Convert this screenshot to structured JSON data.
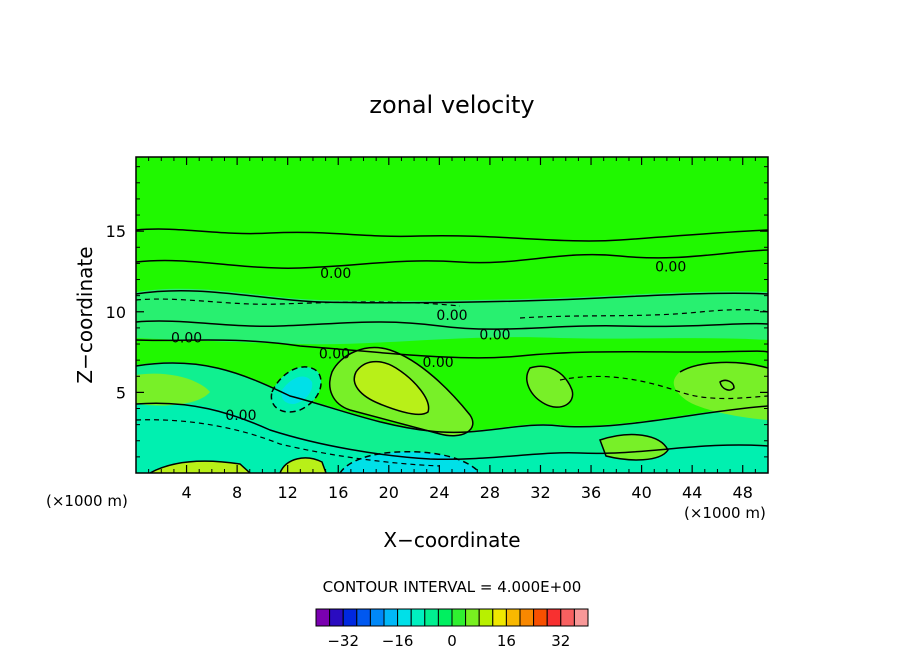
{
  "chart_data": {
    "type": "contour",
    "title": "zonal velocity",
    "xlabel": "X−coordinate",
    "ylabel": "Z−coordinate",
    "x_unit_left": "(×1000 m)",
    "x_unit_right": "(×1000 m)",
    "xlim": [
      0,
      50
    ],
    "ylim": [
      0,
      19.6
    ],
    "x_ticks": [
      4,
      8,
      12,
      16,
      20,
      24,
      28,
      32,
      36,
      40,
      44,
      48
    ],
    "x_tick_labels": [
      "4",
      "8",
      "12",
      "16",
      "20",
      "24",
      "28",
      "32",
      "36",
      "40",
      "44",
      "48"
    ],
    "y_ticks": [
      5,
      10,
      15
    ],
    "y_tick_labels": [
      "5",
      "10",
      "15"
    ],
    "contour_labels": [
      {
        "text": "0.00",
        "x": 15.8,
        "y": 12.4
      },
      {
        "text": "0.00",
        "x": 42.3,
        "y": 12.8
      },
      {
        "text": "0.00",
        "x": 25.0,
        "y": 9.8
      },
      {
        "text": "0.00",
        "x": 28.4,
        "y": 8.6
      },
      {
        "text": "0.00",
        "x": 23.9,
        "y": 6.9
      },
      {
        "text": "0.00",
        "x": 4.0,
        "y": 8.4
      },
      {
        "text": "0.00",
        "x": 15.7,
        "y": 7.4
      },
      {
        "text": "0.00",
        "x": 8.3,
        "y": 3.6
      }
    ],
    "contour_interval_text": "CONTOUR INTERVAL = 4.000E+00",
    "colorbar": {
      "colors": [
        "#7a00b0",
        "#2a0cc0",
        "#0028e0",
        "#0058f0",
        "#0088f8",
        "#00b8f8",
        "#00e0e8",
        "#00f0c0",
        "#00f090",
        "#00f060",
        "#30f030",
        "#78f020",
        "#b8f000",
        "#f0e800",
        "#f8b800",
        "#f88800",
        "#f85000",
        "#f83030",
        "#f86060",
        "#f89898"
      ],
      "tick_values": [
        -32,
        -16,
        0,
        16,
        32
      ],
      "tick_labels": [
        "−32",
        "−16",
        "0",
        "16",
        "32"
      ]
    }
  }
}
